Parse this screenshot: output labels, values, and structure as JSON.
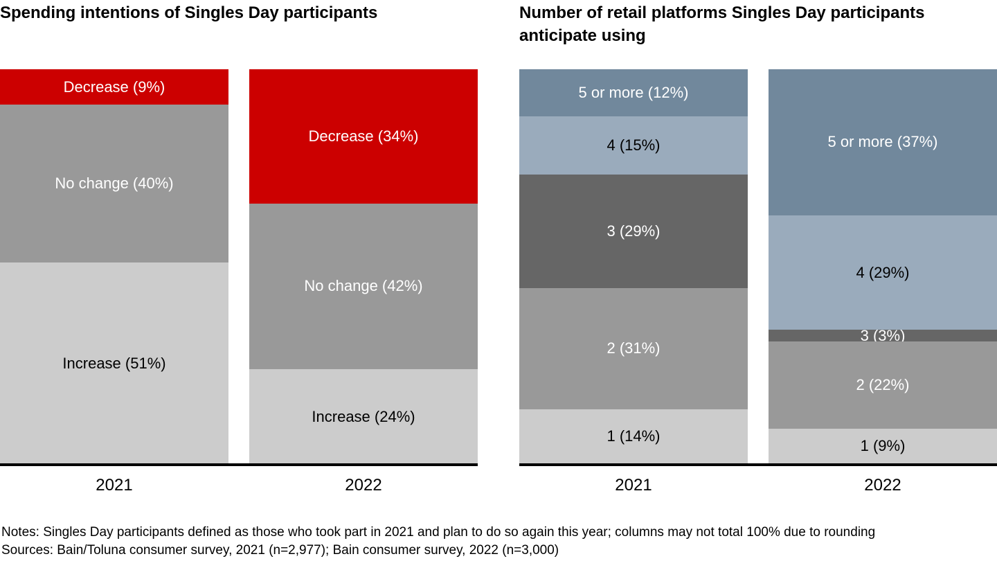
{
  "chart_data": [
    {
      "type": "bar",
      "subtype": "stacked-percentage-column",
      "title": "Spending intentions of Singles Day participants",
      "categories": [
        "2021",
        "2022"
      ],
      "series": [
        {
          "name": "Decrease",
          "values": [
            9,
            34
          ],
          "color": "#cc0000",
          "label_color": "#ffffff"
        },
        {
          "name": "No change",
          "values": [
            40,
            42
          ],
          "color": "#999999",
          "label_color": "#ffffff"
        },
        {
          "name": "Increase",
          "values": [
            51,
            24
          ],
          "color": "#cccccc",
          "label_color": "#000000"
        }
      ],
      "stack_order": "top-to-bottom",
      "label_format": "{name} ({value}%)",
      "ylim": [
        0,
        100
      ],
      "grid": false,
      "legend": "none (labels inside segments)",
      "axis": {
        "baseline_color": "#000000"
      }
    },
    {
      "type": "bar",
      "subtype": "stacked-percentage-column",
      "title": "Number of retail platforms Singles Day participants anticipate using",
      "categories": [
        "2021",
        "2022"
      ],
      "series": [
        {
          "name": "5 or more",
          "values": [
            12,
            37
          ],
          "color": "#71889c",
          "label_color": "#ffffff"
        },
        {
          "name": "4",
          "values": [
            15,
            29
          ],
          "color": "#9aabbc",
          "label_color": "#000000"
        },
        {
          "name": "3",
          "values": [
            29,
            3
          ],
          "color": "#666666",
          "label_color": "#ffffff"
        },
        {
          "name": "2",
          "values": [
            31,
            22
          ],
          "color": "#999999",
          "label_color": "#ffffff"
        },
        {
          "name": "1",
          "values": [
            14,
            9
          ],
          "color": "#cccccc",
          "label_color": "#000000"
        }
      ],
      "stack_order": "top-to-bottom",
      "label_format": "{name} ({value}%)",
      "ylim": [
        0,
        100
      ],
      "grid": false,
      "legend": "none (labels inside segments)",
      "axis": {
        "baseline_color": "#000000"
      }
    }
  ],
  "footer": {
    "notes": "Notes: Singles Day participants defined as those who took part in 2021 and plan to do so again this year; columns may not total 100% due to rounding",
    "sources": "Sources: Bain/Toluna consumer survey, 2021 (n=2,977); Bain consumer survey, 2022 (n=3,000)"
  }
}
